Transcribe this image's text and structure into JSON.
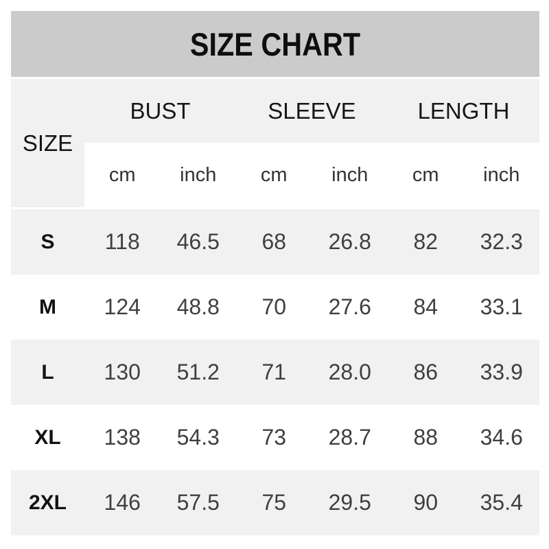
{
  "ui": {
    "title": "SIZE CHART",
    "size_label": "SIZE",
    "groups": [
      "BUST",
      "SLEEVE",
      "LENGTH"
    ],
    "units": [
      "cm",
      "inch",
      "cm",
      "inch",
      "cm",
      "inch"
    ],
    "rows": [
      {
        "size": "S",
        "values": [
          "118",
          "46.5",
          "68",
          "26.8",
          "82",
          "32.3"
        ]
      },
      {
        "size": "M",
        "values": [
          "124",
          "48.8",
          "70",
          "27.6",
          "84",
          "33.1"
        ]
      },
      {
        "size": "L",
        "values": [
          "130",
          "51.2",
          "71",
          "28.0",
          "86",
          "33.9"
        ]
      },
      {
        "size": "XL",
        "values": [
          "138",
          "54.3",
          "73",
          "28.7",
          "88",
          "34.6"
        ]
      },
      {
        "size": "2XL",
        "values": [
          "146",
          "57.5",
          "75",
          "29.5",
          "90",
          "35.4"
        ]
      }
    ]
  },
  "colors": {
    "banner_bg": "#cbcbcb",
    "band_bg": "#f1f1f1",
    "page_bg": "#ffffff",
    "title_text": "#0e0e0e",
    "header_text": "#161616",
    "value_text": "#3f3f3f"
  },
  "chart_data": {
    "type": "table",
    "title": "SIZE CHART",
    "columns": [
      "SIZE",
      "BUST cm",
      "BUST inch",
      "SLEEVE cm",
      "SLEEVE inch",
      "LENGTH cm",
      "LENGTH inch"
    ],
    "rows": [
      [
        "S",
        118,
        46.5,
        68,
        26.8,
        82,
        32.3
      ],
      [
        "M",
        124,
        48.8,
        70,
        27.6,
        84,
        33.1
      ],
      [
        "L",
        130,
        51.2,
        71,
        28.0,
        86,
        33.9
      ],
      [
        "XL",
        138,
        54.3,
        73,
        28.7,
        88,
        34.6
      ],
      [
        "2XL",
        146,
        57.5,
        75,
        29.5,
        90,
        35.4
      ]
    ]
  }
}
